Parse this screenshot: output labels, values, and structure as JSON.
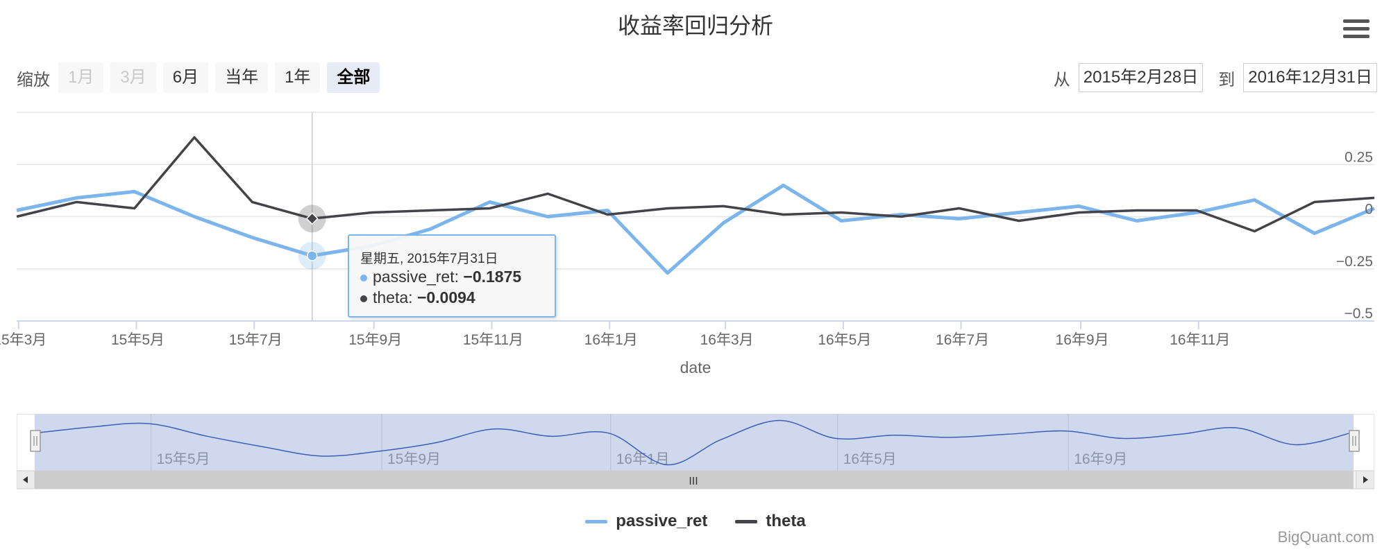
{
  "chart_data": {
    "type": "line",
    "title": "收益率回归分析",
    "xlabel": "date",
    "x": [
      "2015-02-28",
      "2015-03-31",
      "2015-04-30",
      "2015-05-31",
      "2015-06-30",
      "2015-07-31",
      "2015-08-31",
      "2015-09-30",
      "2015-10-31",
      "2015-11-30",
      "2015-12-31",
      "2016-01-31",
      "2016-02-29",
      "2016-03-31",
      "2016-04-30",
      "2016-05-31",
      "2016-06-30",
      "2016-07-31",
      "2016-08-31",
      "2016-09-30",
      "2016-10-31",
      "2016-11-30",
      "2016-12-31",
      "2017-01-31"
    ],
    "series": [
      {
        "name": "passive_ret",
        "color": "#7cb5ec",
        "values": [
          0.03,
          0.09,
          0.12,
          0.0,
          -0.1,
          -0.1875,
          -0.14,
          -0.06,
          0.07,
          0.0,
          0.03,
          -0.27,
          -0.03,
          0.15,
          -0.02,
          0.01,
          -0.01,
          0.02,
          0.05,
          -0.02,
          0.02,
          0.08,
          -0.08,
          0.04
        ]
      },
      {
        "name": "theta",
        "color": "#434348",
        "values": [
          0.0,
          0.07,
          0.04,
          0.38,
          0.07,
          -0.0094,
          0.02,
          0.03,
          0.04,
          0.11,
          0.01,
          0.04,
          0.05,
          0.01,
          0.02,
          0.0,
          0.04,
          -0.02,
          0.02,
          0.03,
          0.03,
          -0.07,
          0.07,
          0.09
        ]
      }
    ],
    "ylim": [
      -0.5,
      0.5
    ],
    "y_ticks": [
      "0.25",
      "0",
      "−0.25",
      "−0.5"
    ],
    "x_ticks": [
      "15年3月",
      "15年5月",
      "15年7月",
      "15年9月",
      "15年11月",
      "16年1月",
      "16年3月",
      "16年5月",
      "16年7月",
      "16年9月",
      "16年11月"
    ],
    "grid": true,
    "legend_position": "bottom-center",
    "navigator_ticks": [
      "15年5月",
      "15年9月",
      "16年1月",
      "16年5月",
      "16年9月"
    ],
    "crosshair_date": "2015-07-31"
  },
  "range_selector": {
    "zoom_label": "缩放",
    "buttons": [
      "1月",
      "3月",
      "6月",
      "当年",
      "1年",
      "全部"
    ],
    "disabled": [
      true,
      true,
      false,
      false,
      false,
      false
    ],
    "active_index": 5,
    "from_label": "从",
    "from_value": "2015年2月28日",
    "to_label": "到",
    "to_value": "2016年12月31日"
  },
  "tooltip": {
    "header": "星期五, 2015年7月31日",
    "rows": [
      {
        "name": "passive_ret",
        "value": "−0.1875",
        "color": "#7cb5ec"
      },
      {
        "name": "theta",
        "value": "−0.0094",
        "color": "#434348"
      }
    ]
  },
  "navigator": {
    "scroll_grip": "III"
  },
  "credits": "BigQuant.com"
}
